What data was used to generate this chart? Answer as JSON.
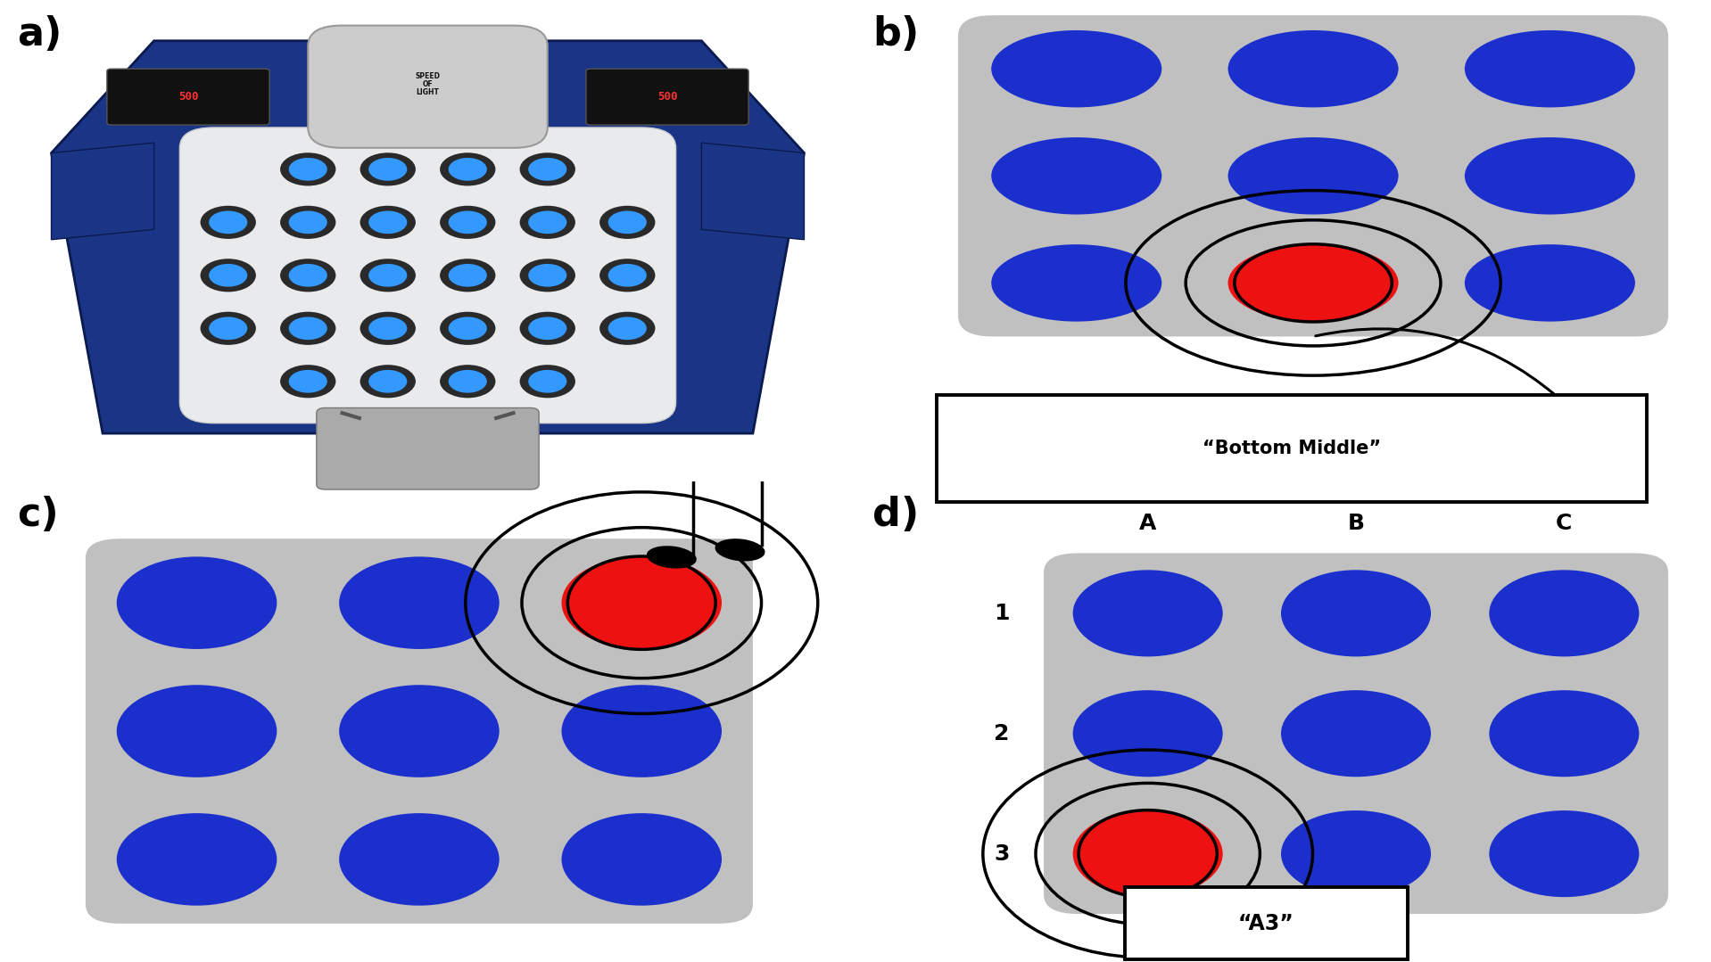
{
  "fig_width": 19.18,
  "fig_height": 10.79,
  "bg_color": "#ffffff",
  "panel_bg": "#c0c0c0",
  "button_blue": "#1a2fcc",
  "button_red": "#ee1111",
  "panel_a_label": "a)",
  "panel_b_label": "b)",
  "panel_c_label": "c)",
  "panel_d_label": "d)",
  "speech_text": "“Bottom Middle”",
  "grid_text": "“A3”",
  "col_labels_d": [
    "A",
    "B",
    "C"
  ],
  "row_labels_d": [
    "1",
    "2",
    "3"
  ],
  "label_fontsize": 32
}
